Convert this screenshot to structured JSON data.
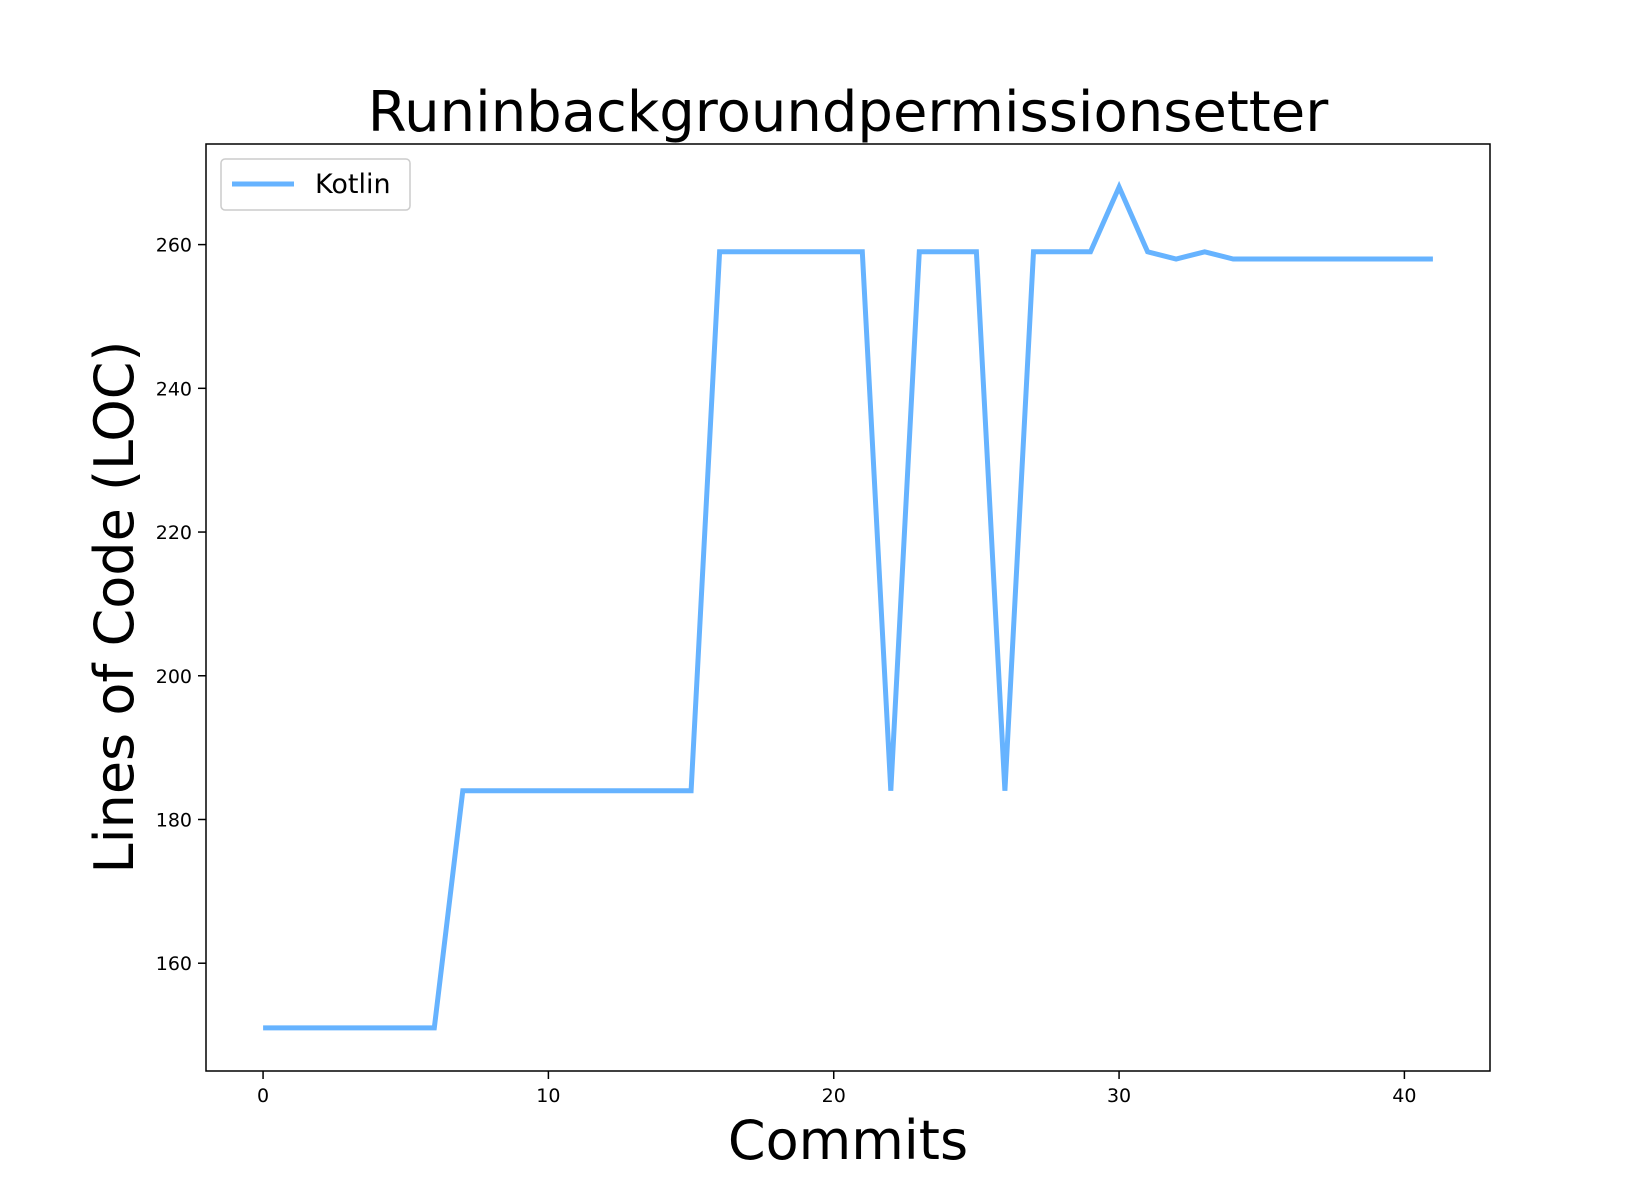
{
  "chart_data": {
    "type": "line",
    "title": "Runinbackgroundpermissionsetter",
    "xlabel": "Commits",
    "ylabel": "Lines of Code (LOC)",
    "xlim": [
      -2,
      43
    ],
    "ylim": [
      145,
      274
    ],
    "xticks": [
      0,
      10,
      20,
      30,
      40
    ],
    "yticks": [
      160,
      180,
      200,
      220,
      240,
      260
    ],
    "legend_position": "upper-left",
    "grid": false,
    "series": [
      {
        "name": "Kotlin",
        "color": "#66b3ff",
        "x": [
          0,
          1,
          2,
          3,
          4,
          5,
          6,
          7,
          8,
          9,
          10,
          11,
          12,
          13,
          14,
          15,
          16,
          17,
          18,
          19,
          20,
          21,
          22,
          23,
          24,
          25,
          26,
          27,
          28,
          29,
          30,
          31,
          32,
          33,
          34,
          35,
          36,
          37,
          38,
          39,
          40,
          41
        ],
        "y": [
          151,
          151,
          151,
          151,
          151,
          151,
          151,
          184,
          184,
          184,
          184,
          184,
          184,
          184,
          184,
          184,
          259,
          259,
          259,
          259,
          259,
          259,
          184,
          259,
          259,
          259,
          184,
          259,
          259,
          259,
          268,
          259,
          258,
          259,
          258,
          258,
          258,
          258,
          258,
          258,
          258,
          258
        ]
      }
    ]
  }
}
